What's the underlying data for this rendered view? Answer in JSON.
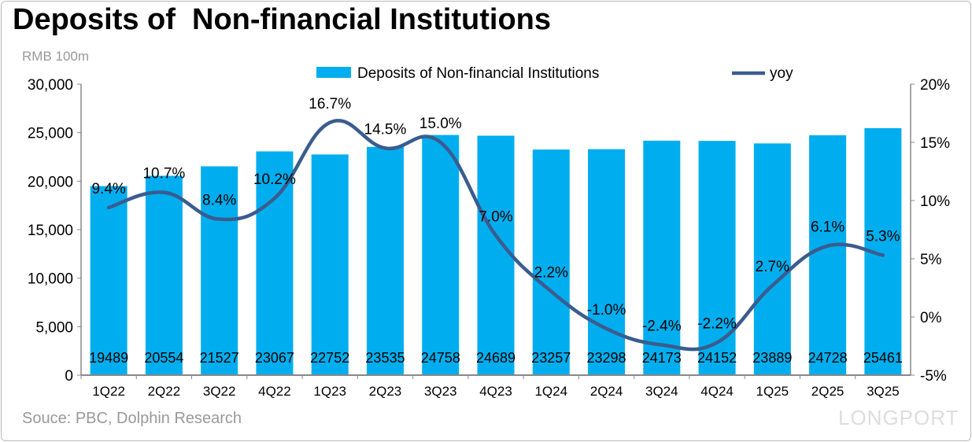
{
  "title": "Deposits of  Non-financial Institutions",
  "unit": "RMB 100m",
  "source": "Souce: PBC, Dolphin Research",
  "brand": "LONGPORT",
  "colors": {
    "bar": "#00AEEF",
    "line": "#3A5C8F"
  },
  "chart_data": {
    "type": "bar+line",
    "categories": [
      "1Q22",
      "2Q22",
      "3Q22",
      "4Q22",
      "1Q23",
      "2Q23",
      "3Q23",
      "4Q23",
      "1Q24",
      "2Q24",
      "3Q24",
      "4Q24",
      "1Q25",
      "2Q25",
      "3Q25"
    ],
    "series": [
      {
        "name": "Deposits of  Non-financial Institutions",
        "type": "bar",
        "axis": "left",
        "values": [
          19489,
          20554,
          21527,
          23067,
          22752,
          23535,
          24758,
          24689,
          23257,
          23298,
          24173,
          24152,
          23889,
          24728,
          25461
        ]
      },
      {
        "name": "yoy",
        "type": "line",
        "axis": "right",
        "values": [
          9.4,
          10.7,
          8.4,
          10.2,
          16.7,
          14.5,
          15.0,
          7.0,
          2.2,
          -1.0,
          -2.4,
          -2.2,
          2.7,
          6.1,
          5.3
        ],
        "labels": [
          "9.4%",
          "10.7%",
          "8.4%",
          "10.2%",
          "16.7%",
          "14.5%",
          "15.0%",
          "7.0%",
          "2.2%",
          "-1.0%",
          "-2.4%",
          "-2.2%",
          "2.7%",
          "6.1%",
          "5.3%"
        ]
      }
    ],
    "left_axis": {
      "ylim": [
        0,
        30000
      ],
      "ticks": [
        "0",
        "5,000",
        "10,000",
        "15,000",
        "20,000",
        "25,000",
        "30,000"
      ]
    },
    "right_axis": {
      "ylim": [
        -5,
        20
      ],
      "ticks": [
        "-5%",
        "0%",
        "5%",
        "10%",
        "15%",
        "20%"
      ]
    },
    "legend": "top-center",
    "grid": false
  }
}
